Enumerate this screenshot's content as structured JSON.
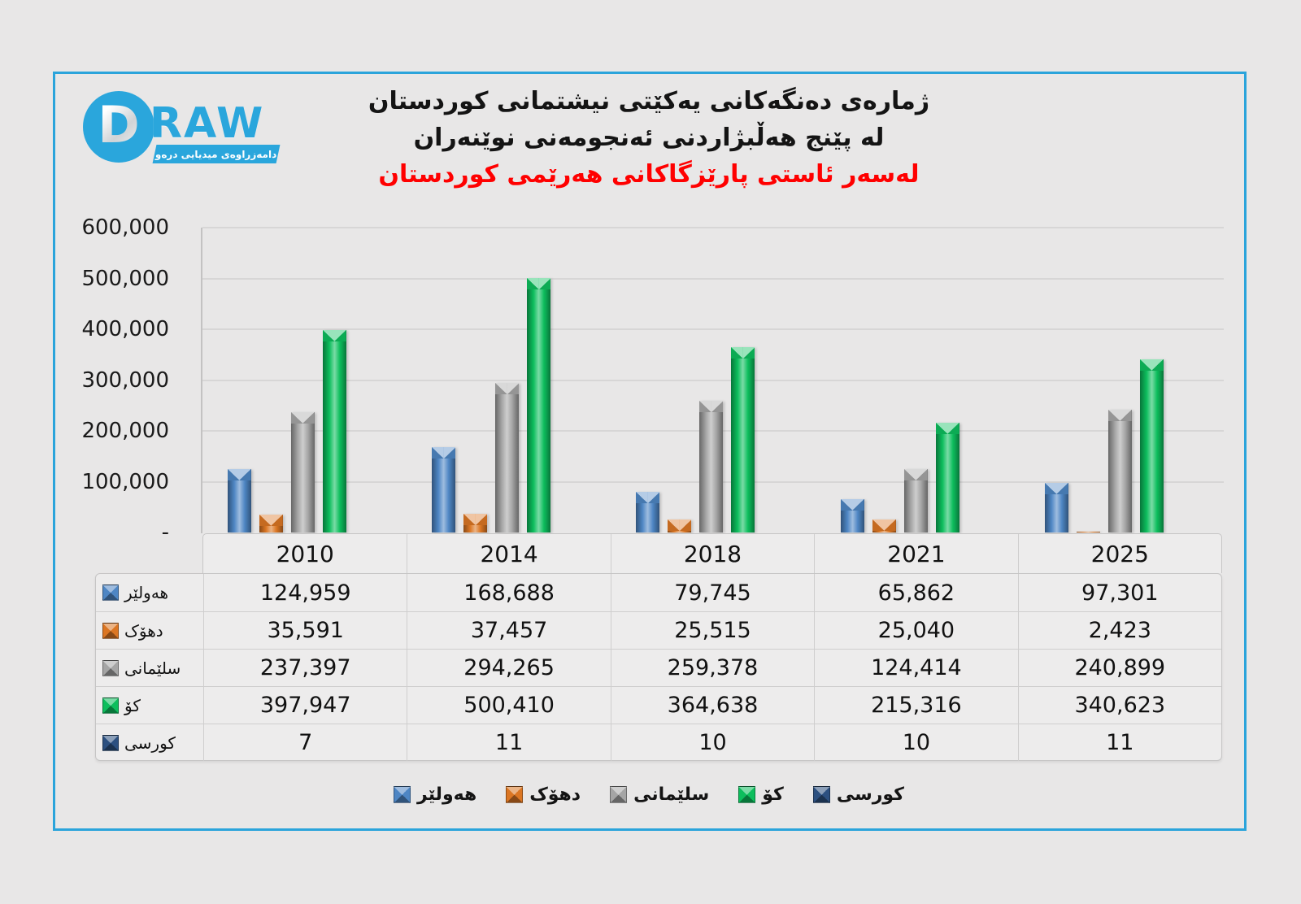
{
  "page": {
    "background_color": "#E8E7E7",
    "frame_border_color": "#2BA4DB",
    "gridline_color": "#D7D6D6"
  },
  "logo": {
    "d": "D",
    "raw": "RAW",
    "banner": "دامەزراوەی میدیایی درەو",
    "brand_color": "#2AA6DC"
  },
  "title": {
    "line1": "ژمارەی دەنگەکانی یەکێتی نیشتمانی کوردستان",
    "line2": "له پێنج هەڵبژاردنی ئەنجومەنی نوێنەران",
    "line3": "لەسەر ئاستی پارێزگاکانی هەرێمی کوردستان",
    "line3_color": "#FF0000"
  },
  "chart_data": {
    "type": "bar",
    "categories": [
      "2010",
      "2014",
      "2018",
      "2021",
      "2025"
    ],
    "series": [
      {
        "name": "هەولێر",
        "color": "#4E86C4",
        "values": [
          124959,
          168688,
          79745,
          65862,
          97301
        ]
      },
      {
        "name": "دهۆک",
        "color": "#DB7623",
        "values": [
          35591,
          37457,
          25515,
          25040,
          2423
        ]
      },
      {
        "name": "سلێمانی",
        "color": "#A5A5A5",
        "values": [
          237397,
          294265,
          259378,
          124414,
          240899
        ]
      },
      {
        "name": "کۆ",
        "color": "#0DBE5D",
        "values": [
          397947,
          500410,
          364638,
          215316,
          340623
        ]
      },
      {
        "name": "کورسی",
        "color": "#2C5080",
        "values": [
          7,
          11,
          10,
          10,
          11
        ]
      }
    ],
    "ylim": [
      0,
      600000
    ],
    "ytick_step": 100000,
    "ytick_labels": [
      "-",
      "100,000",
      "200,000",
      "300,000",
      "400,000",
      "500,000",
      "600,000"
    ],
    "grid": true,
    "legend_position": "bottom",
    "data_table_shown": true
  }
}
